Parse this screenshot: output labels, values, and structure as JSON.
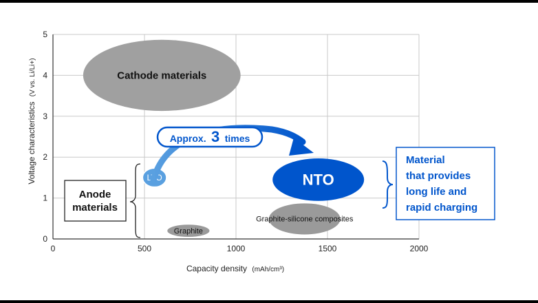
{
  "chart_data": {
    "type": "scatter",
    "title": "",
    "xlabel": "Capacity density",
    "xlabel_unit": "(mAh/cm³)",
    "ylabel": "Voltage characteristics",
    "ylabel_unit": "(V vs. Li/Li+)",
    "xlim": [
      0,
      2000
    ],
    "ylim": [
      0,
      5
    ],
    "xticks": [
      0,
      500,
      1000,
      1500,
      2000
    ],
    "yticks": [
      0,
      1,
      2,
      3,
      4,
      5
    ],
    "grid": true,
    "regions": [
      {
        "name": "Cathode materials",
        "x": 595,
        "y": 4.0,
        "rx": 430,
        "ry": 0.87,
        "color": "#a0a0a0",
        "label_color": "#111111"
      },
      {
        "name": "NTO",
        "x": 1450,
        "y": 1.45,
        "rx": 250,
        "ry": 0.52,
        "color": "#0055cc",
        "label_color": "#ffffff"
      },
      {
        "name": "Graphite-silicone composites",
        "x": 1375,
        "y": 0.49,
        "rx": 195,
        "ry": 0.38,
        "color": "#9a9a9a",
        "label_color": "#111111"
      },
      {
        "name": "Graphite",
        "x": 740,
        "y": 0.2,
        "rx": 115,
        "ry": 0.15,
        "color": "#9a9a9a",
        "label_color": "#111111"
      },
      {
        "name": "LTO",
        "x": 555,
        "y": 1.5,
        "rx": 65,
        "ry": 0.23,
        "color": "#5aa0e0",
        "label_color": "#ffffff"
      }
    ],
    "annotations": {
      "arrow_prefix": "Approx.",
      "arrow_number": "3",
      "arrow_suffix": "times",
      "anode_label_line1": "Anode",
      "anode_label_line2": "materials",
      "nto_benefit_lines": [
        "Material",
        "that provides",
        "long life and",
        "rapid charging"
      ]
    },
    "colors": {
      "accent_blue": "#0055cc",
      "light_blue": "#5aa0e0",
      "gray": "#a0a0a0"
    }
  }
}
